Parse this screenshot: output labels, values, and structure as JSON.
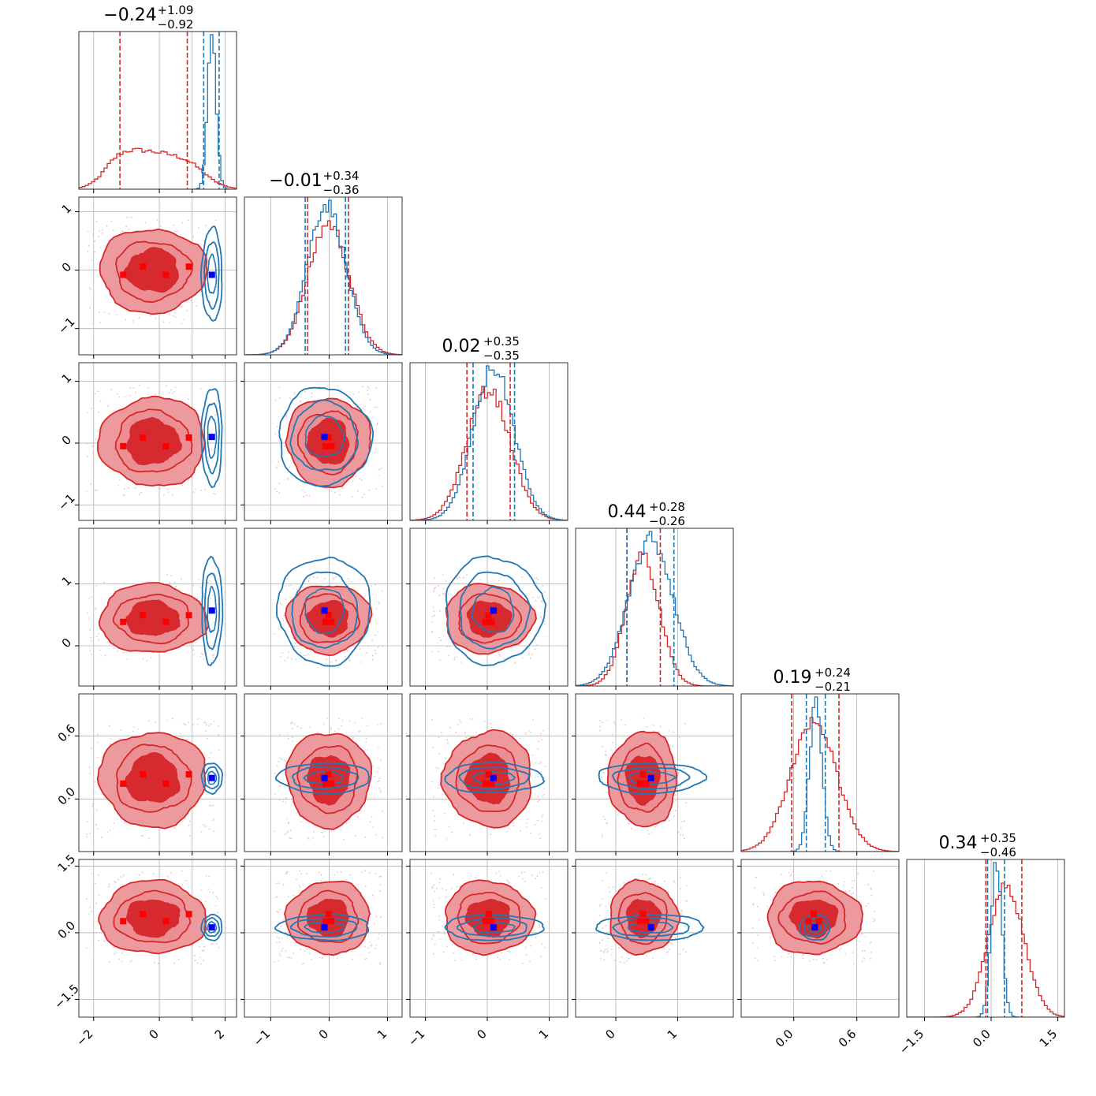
{
  "chart_data": {
    "type": "corner",
    "dimensions": 6,
    "series": [
      {
        "color": "#d62728"
      },
      {
        "color": "#1f77b4"
      }
    ],
    "titles": [
      {
        "value": "−0.24",
        "plus": "+1.09",
        "minus": "−0.92"
      },
      {
        "value": "−0.01",
        "plus": "+0.34",
        "minus": "−0.36"
      },
      {
        "value": "0.02",
        "plus": "+0.35",
        "minus": "−0.35"
      },
      {
        "value": "0.44",
        "plus": "+0.28",
        "minus": "−0.26"
      },
      {
        "value": "0.19",
        "plus": "+0.24",
        "minus": "−0.21"
      },
      {
        "value": "0.34",
        "plus": "+0.35",
        "minus": "−0.46"
      }
    ],
    "ranges": [
      [
        -2.45,
        2.35
      ],
      [
        -1.45,
        1.25
      ],
      [
        -1.25,
        1.3
      ],
      [
        -0.65,
        1.9
      ],
      [
        -0.5,
        1.0
      ],
      [
        -1.9,
        1.65
      ]
    ],
    "ticks": [
      [
        {
          "v": -2,
          "t": "−2"
        },
        {
          "v": 0,
          "t": "0"
        },
        {
          "v": 1,
          "t": ""
        },
        {
          "v": 2,
          "t": "2"
        }
      ],
      [
        {
          "v": -1,
          "t": "−1"
        },
        {
          "v": 0,
          "t": "0"
        },
        {
          "v": 1,
          "t": "1"
        }
      ],
      [
        {
          "v": -1,
          "t": "−1"
        },
        {
          "v": 0,
          "t": "0"
        },
        {
          "v": 1,
          "t": "1"
        }
      ],
      [
        {
          "v": 0,
          "t": "0"
        },
        {
          "v": 1,
          "t": "1"
        }
      ],
      [
        {
          "v": 0.0,
          "t": "0.0"
        },
        {
          "v": 0.6,
          "t": "0.6"
        }
      ],
      [
        {
          "v": -1.5,
          "t": "−1.5"
        },
        {
          "v": 0.0,
          "t": "0.0"
        },
        {
          "v": 1.5,
          "t": "1.5"
        }
      ]
    ],
    "quantiles_red": [
      [
        -1.2,
        0.85
      ],
      [
        -0.37,
        0.33
      ],
      [
        -0.33,
        0.37
      ],
      [
        0.18,
        0.72
      ],
      [
        -0.02,
        0.43
      ],
      [
        -0.12,
        0.69
      ]
    ],
    "quantiles_blue": [
      [
        1.35,
        1.82
      ],
      [
        -0.41,
        0.28
      ],
      [
        -0.23,
        0.44
      ],
      [
        0.18,
        0.94
      ],
      [
        0.12,
        0.3
      ],
      [
        -0.08,
        0.3
      ]
    ],
    "hist_red": [
      {
        "mu": -0.2,
        "sd": 1.15,
        "shape": "flat"
      },
      {
        "mu": -0.01,
        "sd": 0.35,
        "shape": "normal"
      },
      {
        "mu": 0.02,
        "sd": 0.35,
        "shape": "normal"
      },
      {
        "mu": 0.44,
        "sd": 0.27,
        "shape": "normal"
      },
      {
        "mu": 0.19,
        "sd": 0.22,
        "shape": "normal"
      },
      {
        "mu": 0.34,
        "sd": 0.4,
        "shape": "normal"
      }
    ],
    "hist_blue": [
      {
        "mu": 1.6,
        "sd": 0.13
      },
      {
        "mu": -0.05,
        "sd": 0.33
      },
      {
        "mu": 0.1,
        "sd": 0.33
      },
      {
        "mu": 0.57,
        "sd": 0.36
      },
      {
        "mu": 0.21,
        "sd": 0.06
      },
      {
        "mu": 0.12,
        "sd": 0.12
      }
    ],
    "red_markers": [
      [
        -1.1,
        0.0
      ],
      [
        -0.5,
        -0.05
      ],
      [
        0.2,
        0.0
      ],
      [
        0.9,
        -0.05
      ],
      [
        0.45,
        0.4
      ],
      [
        0.35,
        0.2
      ],
      [
        0.0,
        0.1
      ]
    ],
    "blue_marker": [
      1.6,
      -0.08,
      0.1,
      0.57,
      0.2,
      0.12
    ],
    "grid": true
  }
}
